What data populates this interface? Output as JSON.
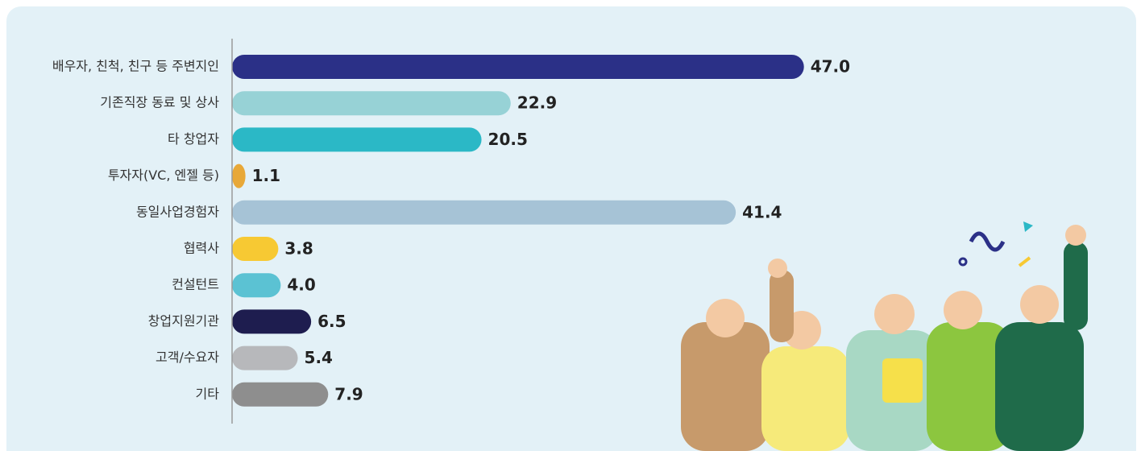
{
  "chart_data": {
    "type": "bar",
    "orientation": "horizontal",
    "categories": [
      "배우자, 친척, 친구 등 주변지인",
      "기존직장 동료 및 상사",
      "타 창업자",
      "투자자(VC, 엔젤 등)",
      "동일사업경험자",
      "협력사",
      "컨설턴트",
      "창업지원기관",
      "고객/수요자",
      "기타"
    ],
    "values": [
      47.0,
      22.9,
      20.5,
      1.1,
      41.4,
      3.8,
      4.0,
      6.5,
      5.4,
      7.9
    ],
    "value_labels": [
      "47.0",
      "22.9",
      "20.5",
      "1.1",
      "41.4",
      "3.8",
      "4.0",
      "6.5",
      "5.4",
      "7.9"
    ],
    "colors": [
      "#2b3087",
      "#97d2d6",
      "#2bb8c6",
      "#e8a838",
      "#a6c3d6",
      "#f7c933",
      "#5bc2d3",
      "#1e1d4f",
      "#b7b8bb",
      "#8e8e8e"
    ]
  }
}
